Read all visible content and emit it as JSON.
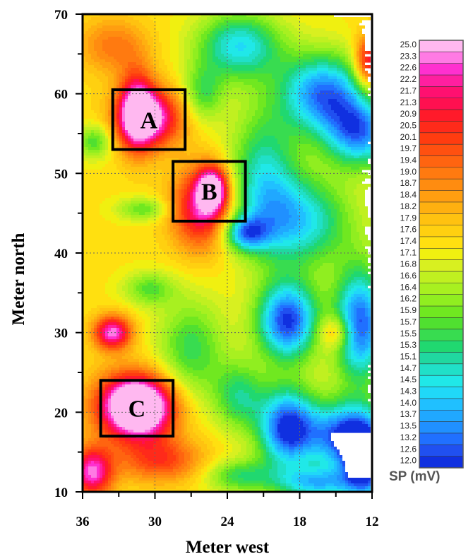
{
  "chart_data": {
    "type": "heatmap",
    "title": "",
    "xlabel": "Meter west",
    "ylabel": "Meter north",
    "xlim": [
      36,
      12
    ],
    "ylim": [
      10,
      70
    ],
    "x_ticks": [
      "36",
      "30",
      "24",
      "18",
      "12"
    ],
    "y_ticks": [
      "10",
      "20",
      "30",
      "40",
      "50",
      "60",
      "70"
    ],
    "grid": "dotted",
    "colorbar": {
      "title": "SP (mV)",
      "labels": [
        "25.0",
        "23.3",
        "22.6",
        "22.2",
        "21.7",
        "21.3",
        "20.9",
        "20.5",
        "20.1",
        "19.7",
        "19.4",
        "19.0",
        "18.7",
        "18.4",
        "18.2",
        "17.9",
        "17.6",
        "17.4",
        "17.1",
        "16.8",
        "16.6",
        "16.4",
        "16.2",
        "15.9",
        "15.7",
        "15.5",
        "15.3",
        "15.1",
        "14.7",
        "14.5",
        "14.3",
        "14.0",
        "13.7",
        "13.5",
        "13.2",
        "12.6",
        "12.0"
      ],
      "colors": [
        "#ffb8f0",
        "#ff7ae4",
        "#ff30d0",
        "#ff1fa0",
        "#ff1070",
        "#ff1050",
        "#ff1a2a",
        "#ff2a1a",
        "#ff3c10",
        "#ff5010",
        "#ff6410",
        "#ff7a10",
        "#ff8c10",
        "#ff9e10",
        "#ffb010",
        "#ffc210",
        "#ffd010",
        "#ffe010",
        "#f0f010",
        "#d8f020",
        "#c0f020",
        "#a8f020",
        "#90ee20",
        "#70e820",
        "#50e030",
        "#38dc50",
        "#20d870",
        "#20d8a0",
        "#20e0c8",
        "#20e8e8",
        "#20d8f8",
        "#20c0ff",
        "#20a8ff",
        "#2090ff",
        "#2070ff",
        "#2050f0",
        "#1030e0"
      ],
      "range": [
        12.0,
        25.0
      ]
    },
    "anomalies": [
      {
        "label": "A",
        "x_range": [
          33.5,
          27.5
        ],
        "y_range": [
          53,
          60.5
        ]
      },
      {
        "label": "B",
        "x_range": [
          28.5,
          22.5
        ],
        "y_range": [
          44,
          51.5
        ]
      },
      {
        "label": "C",
        "x_range": [
          34.5,
          28.5
        ],
        "y_range": [
          17,
          24
        ]
      }
    ],
    "sp_field_mv": {
      "background": 18.8,
      "features": [
        {
          "x": 30.5,
          "y": 57,
          "value": 25.0,
          "sx": 1.9,
          "sy": 2.6
        },
        {
          "x": 31.5,
          "y": 58,
          "value": 23.5,
          "sx": 1.0,
          "sy": 3.6
        },
        {
          "x": 25.2,
          "y": 48,
          "value": 25.0,
          "sx": 0.9,
          "sy": 2.0
        },
        {
          "x": 26.2,
          "y": 45.5,
          "value": 23.6,
          "sx": 1.7,
          "sy": 3.6
        },
        {
          "x": 31.2,
          "y": 20.5,
          "value": 25.0,
          "sx": 2.0,
          "sy": 2.6
        },
        {
          "x": 32.0,
          "y": 21.0,
          "value": 23.0,
          "sx": 2.3,
          "sy": 3.0
        },
        {
          "x": 33.5,
          "y": 30.0,
          "value": 24.6,
          "sx": 1.1,
          "sy": 1.5
        },
        {
          "x": 35.2,
          "y": 12.5,
          "value": 24.4,
          "sx": 1.2,
          "sy": 2.2
        },
        {
          "x": 29.5,
          "y": 14.0,
          "value": 22.0,
          "sx": 2.5,
          "sy": 2.0
        },
        {
          "x": 12.3,
          "y": 64.0,
          "value": 23.6,
          "sx": 0.8,
          "sy": 2.3
        },
        {
          "x": 15.0,
          "y": 30.0,
          "value": 21.5,
          "sx": 1.0,
          "sy": 1.5
        },
        {
          "x": 33.5,
          "y": 66.0,
          "value": 21.0,
          "sx": 2.0,
          "sy": 2.5
        },
        {
          "x": 21.0,
          "y": 50.0,
          "value": 15.3,
          "sx": 2.0,
          "sy": 6.0
        },
        {
          "x": 23.0,
          "y": 66.0,
          "value": 14.5,
          "sx": 2.5,
          "sy": 3.0
        },
        {
          "x": 16.0,
          "y": 60.0,
          "value": 13.0,
          "sx": 2.5,
          "sy": 3.5
        },
        {
          "x": 13.0,
          "y": 55.0,
          "value": 13.5,
          "sx": 2.0,
          "sy": 3.0
        },
        {
          "x": 18.0,
          "y": 44.0,
          "value": 14.5,
          "sx": 3.0,
          "sy": 4.0
        },
        {
          "x": 22.5,
          "y": 42.5,
          "value": 14.6,
          "sx": 1.3,
          "sy": 1.5
        },
        {
          "x": 19.0,
          "y": 31.5,
          "value": 12.2,
          "sx": 1.8,
          "sy": 3.5
        },
        {
          "x": 13.0,
          "y": 31.0,
          "value": 12.5,
          "sx": 1.5,
          "sy": 5.0
        },
        {
          "x": 19.0,
          "y": 18.0,
          "value": 12.0,
          "sx": 1.7,
          "sy": 3.5
        },
        {
          "x": 14.5,
          "y": 17.0,
          "value": 13.0,
          "sx": 2.0,
          "sy": 3.0
        },
        {
          "x": 12.5,
          "y": 14.0,
          "value": 12.0,
          "sx": 1.3,
          "sy": 3.5
        },
        {
          "x": 16.5,
          "y": 11.0,
          "value": 14.5,
          "sx": 2.5,
          "sy": 1.5
        },
        {
          "x": 27.0,
          "y": 28.0,
          "value": 16.0,
          "sx": 2.0,
          "sy": 4.5
        },
        {
          "x": 26.0,
          "y": 60.0,
          "value": 16.3,
          "sx": 1.2,
          "sy": 2.5
        },
        {
          "x": 31.0,
          "y": 45.5,
          "value": 16.5,
          "sx": 1.5,
          "sy": 1.0
        },
        {
          "x": 35.0,
          "y": 54.0,
          "value": 16.2,
          "sx": 1.0,
          "sy": 1.5
        },
        {
          "x": 30.5,
          "y": 35.5,
          "value": 16.5,
          "sx": 1.5,
          "sy": 1.5
        },
        {
          "x": 23.0,
          "y": 22.0,
          "value": 15.8,
          "sx": 1.5,
          "sy": 3.0
        },
        {
          "x": 23.0,
          "y": 12.0,
          "value": 16.0,
          "sx": 2.0,
          "sy": 1.5
        }
      ]
    }
  }
}
